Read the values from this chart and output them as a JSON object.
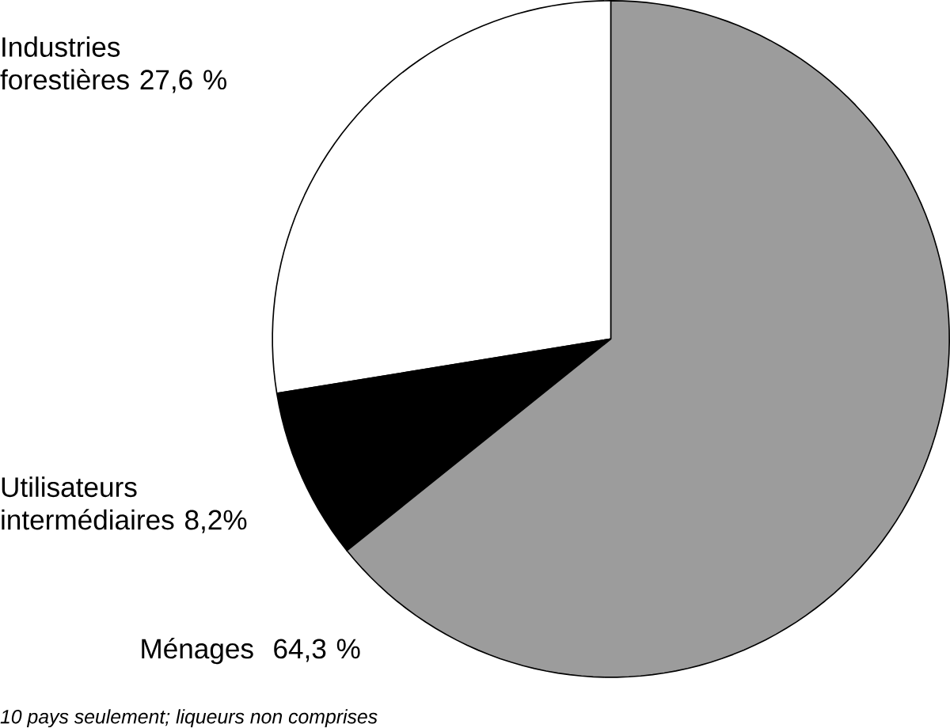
{
  "chart_data": {
    "type": "pie",
    "categories": [
      "Industries forestières",
      "Utilisateurs intermédiaires",
      "Ménages"
    ],
    "values": [
      27.6,
      8.2,
      64.3
    ],
    "value_labels": [
      "27,6 %",
      "8,2%",
      "64,3 %"
    ],
    "colors": [
      "#ffffff",
      "#000000",
      "#9c9c9c"
    ],
    "annotations": [
      "*10 pays seulement; liqueurs non comprises*"
    ]
  }
}
